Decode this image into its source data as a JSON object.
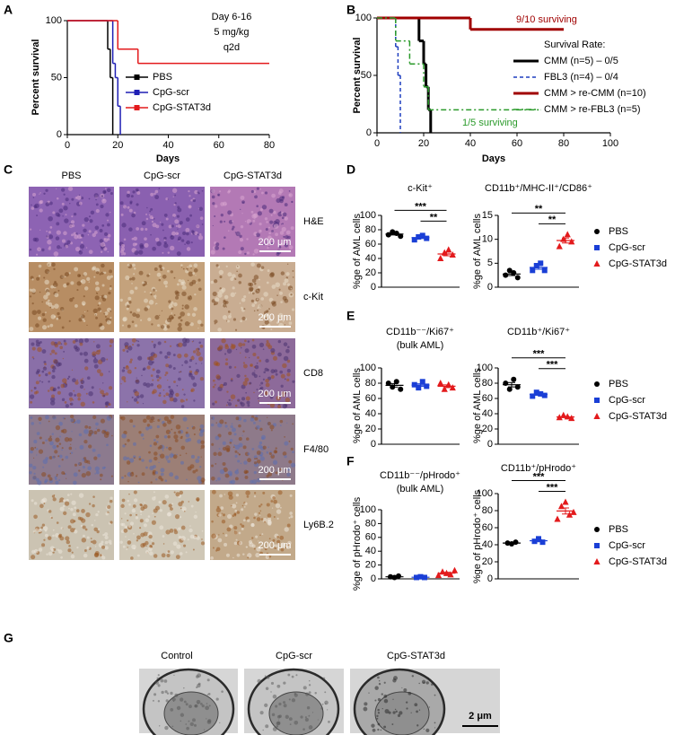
{
  "panel_labels": [
    "A",
    "B",
    "C",
    "D",
    "E",
    "F",
    "G"
  ],
  "chart_data": [
    {
      "type": "step",
      "annotations": [
        "Day 6-16",
        "5 mg/kg",
        "q2d"
      ],
      "xlabel": "Days",
      "ylabel": "Percent survival",
      "xlim": [
        0,
        80
      ],
      "xticks": [
        0,
        20,
        40,
        60,
        80
      ],
      "ylim": [
        0,
        100
      ],
      "yticks": [
        0,
        50,
        100
      ],
      "series": [
        {
          "name": "PBS",
          "color": "#000000",
          "line_style": "solid",
          "x": [
            0,
            16,
            17,
            18
          ],
          "values": [
            100,
            75,
            50,
            0
          ]
        },
        {
          "name": "CpG-scr",
          "color": "#1f1fb4",
          "line_style": "solid",
          "x": [
            0,
            18,
            19,
            20,
            21
          ],
          "values": [
            100,
            62.5,
            50,
            25,
            0
          ]
        },
        {
          "name": "CpG-STAT3d",
          "color": "#e31a1c",
          "line_style": "solid",
          "x": [
            0,
            20,
            28,
            80
          ],
          "values": [
            100,
            75,
            62.5,
            62.5
          ]
        }
      ]
    },
    {
      "type": "step",
      "legend_title": "Survival Rate:",
      "xlabel": "Days",
      "ylabel": "Percent survival",
      "xlim": [
        0,
        100
      ],
      "xticks": [
        0,
        20,
        40,
        60,
        80,
        100
      ],
      "ylim": [
        0,
        100
      ],
      "yticks": [
        0,
        50,
        100
      ],
      "series": [
        {
          "name": "CMM (n=5) – 0/5",
          "color": "#000000",
          "line_style": "thick",
          "x": [
            0,
            18,
            20,
            21,
            22,
            23
          ],
          "values": [
            100,
            80,
            60,
            40,
            20,
            0
          ]
        },
        {
          "name": "FBL3 (n=4) – 0/4",
          "color": "#1f3fbf",
          "line_style": "dashed",
          "x": [
            0,
            8,
            9,
            10
          ],
          "values": [
            100,
            75,
            50,
            0
          ]
        },
        {
          "name": "CMM > re-CMM (n=10)",
          "color": "#a00000",
          "line_style": "thick",
          "x": [
            0,
            40,
            80
          ],
          "values": [
            100,
            90,
            90
          ],
          "annotation": "9/10 surviving"
        },
        {
          "name": "CMM > re-FBL3 (n=5)",
          "color": "#2a9a2a",
          "line_style": "dash-dot",
          "x": [
            0,
            8,
            14,
            20,
            22,
            70
          ],
          "values": [
            100,
            80,
            60,
            40,
            20,
            20
          ],
          "annotation": "1/5 surviving"
        }
      ]
    },
    {
      "type": "dot",
      "title": "c-Kit⁺",
      "ylabel": "%ge of AML cells",
      "ylim": [
        0,
        100
      ],
      "yticks": [
        0,
        20,
        40,
        60,
        80,
        100
      ],
      "series": [
        {
          "color": "#000000",
          "marker": "circle",
          "values": [
            73,
            77,
            75,
            71
          ]
        },
        {
          "color": "#1a3fd6",
          "marker": "square",
          "values": [
            66,
            70,
            72,
            68
          ]
        },
        {
          "color": "#e31a1c",
          "marker": "triangle",
          "values": [
            40,
            48,
            52,
            45
          ]
        }
      ],
      "significance": [
        "***",
        "**"
      ]
    },
    {
      "type": "dot",
      "title": "CD11b⁺/MHC-II⁺/CD86⁺",
      "ylabel": "%ge of AML cells",
      "ylim": [
        0,
        15
      ],
      "yticks": [
        0,
        5,
        10,
        15
      ],
      "series": [
        {
          "name": "PBS",
          "color": "#000000",
          "marker": "circle",
          "values": [
            2.5,
            3.5,
            3,
            2
          ]
        },
        {
          "name": "CpG-scr",
          "color": "#1a3fd6",
          "marker": "square",
          "values": [
            3.5,
            4.5,
            5,
            3.5
          ]
        },
        {
          "name": "CpG-STAT3d",
          "color": "#e31a1c",
          "marker": "triangle",
          "values": [
            8.5,
            10,
            11,
            9.5
          ]
        }
      ],
      "significance": [
        "**",
        "**"
      ],
      "legend": true
    },
    {
      "type": "dot",
      "title": "CD11b⁻⁻/Ki67⁺",
      "subtitle": "(bulk AML)",
      "ylabel": "%ge of AML cells",
      "ylim": [
        0,
        100
      ],
      "yticks": [
        0,
        20,
        40,
        60,
        80,
        100
      ],
      "series": [
        {
          "color": "#000000",
          "marker": "circle",
          "values": [
            80,
            75,
            82,
            72
          ]
        },
        {
          "color": "#1a3fd6",
          "marker": "square",
          "values": [
            78,
            74,
            82,
            76
          ]
        },
        {
          "color": "#e31a1c",
          "marker": "triangle",
          "values": [
            80,
            72,
            78,
            74
          ]
        }
      ]
    },
    {
      "type": "dot",
      "title": "CD11b⁺/Ki67⁺",
      "ylabel": "%ge of AML cells",
      "ylim": [
        0,
        100
      ],
      "yticks": [
        0,
        20,
        40,
        60,
        80,
        100
      ],
      "series": [
        {
          "name": "PBS",
          "color": "#000000",
          "marker": "circle",
          "values": [
            80,
            72,
            85,
            75
          ]
        },
        {
          "name": "CpG-scr",
          "color": "#1a3fd6",
          "marker": "square",
          "values": [
            63,
            68,
            66,
            64
          ]
        },
        {
          "name": "CpG-STAT3d",
          "color": "#e31a1c",
          "marker": "triangle",
          "values": [
            35,
            38,
            36,
            34
          ]
        }
      ],
      "significance": [
        "***",
        "***"
      ],
      "legend": true
    },
    {
      "type": "dot",
      "title": "CD11b⁻⁻/pHrodo⁺",
      "subtitle": "(bulk AML)",
      "ylabel": "%ge of pHrodo⁺ cells",
      "ylim": [
        0,
        100
      ],
      "yticks": [
        0,
        20,
        40,
        60,
        80,
        100
      ],
      "series": [
        {
          "color": "#000000",
          "marker": "circle",
          "values": [
            3,
            2,
            4
          ]
        },
        {
          "color": "#1a3fd6",
          "marker": "square",
          "values": [
            2,
            3,
            2
          ]
        },
        {
          "color": "#e31a1c",
          "marker": "triangle",
          "values": [
            5,
            10,
            8,
            6,
            12
          ]
        }
      ]
    },
    {
      "type": "dot",
      "title": "CD11b⁺/pHrodo⁺",
      "ylabel": "%ge of pHrodo⁺ cells",
      "ylim": [
        0,
        100
      ],
      "yticks": [
        0,
        20,
        40,
        60,
        80,
        100
      ],
      "series": [
        {
          "name": "PBS",
          "color": "#000000",
          "marker": "circle",
          "values": [
            42,
            41,
            43
          ]
        },
        {
          "name": "CpG-scr",
          "color": "#1a3fd6",
          "marker": "square",
          "values": [
            44,
            47,
            43
          ]
        },
        {
          "name": "CpG-STAT3d",
          "color": "#e31a1c",
          "marker": "triangle",
          "values": [
            70,
            85,
            90,
            75,
            78
          ]
        }
      ],
      "significance": [
        "***",
        "***"
      ],
      "legend": true
    }
  ],
  "histology": {
    "columns": [
      "PBS",
      "CpG-scr",
      "CpG-STAT3d"
    ],
    "rows": [
      "H&E",
      "c-Kit",
      "CD8",
      "F4/80",
      "Ly6B.2"
    ],
    "scale_bar": "200 μm"
  },
  "electron_microscopy": {
    "columns": [
      "Control",
      "CpG-scr",
      "CpG-STAT3d"
    ],
    "scale_bar": "2 μm"
  }
}
